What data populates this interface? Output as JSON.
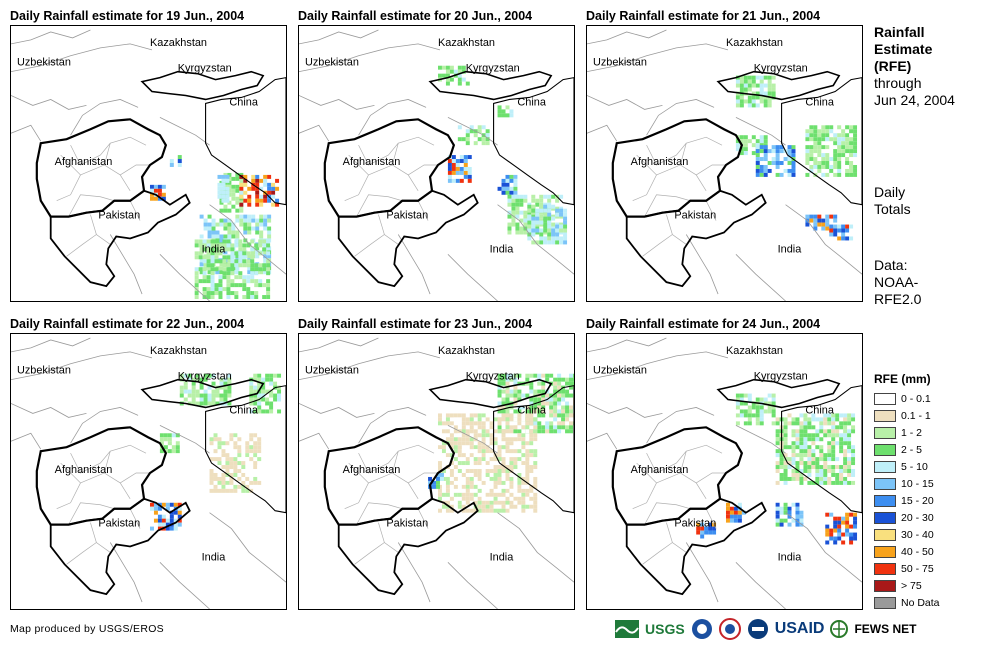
{
  "panels": [
    {
      "title": "Daily Rainfall estimate for 19 Jun., 2004",
      "pattern": "p19"
    },
    {
      "title": "Daily Rainfall estimate for 20 Jun., 2004",
      "pattern": "p20"
    },
    {
      "title": "Daily Rainfall estimate for 21 Jun., 2004",
      "pattern": "p21"
    },
    {
      "title": "Daily Rainfall estimate for 22 Jun., 2004",
      "pattern": "p22"
    },
    {
      "title": "Daily Rainfall estimate for 23 Jun., 2004",
      "pattern": "p23"
    },
    {
      "title": "Daily Rainfall estimate for 24 Jun., 2004",
      "pattern": "p24"
    }
  ],
  "country_labels": {
    "kazakhstan": "Kazakhstan",
    "uzbekistan": "Uzbekistan",
    "kyrgyzstan": "Kyrgyzstan",
    "china": "China",
    "afghanistan": "Afghanistan",
    "pakistan": "Pakistan",
    "india": "India"
  },
  "side": {
    "title_line1": "Rainfall",
    "title_line2": "Estimate",
    "title_line3": "(RFE)",
    "through": "through",
    "date": "Jun 24, 2004",
    "daily1": "Daily",
    "daily2": "Totals",
    "data1": "Data:",
    "data2": "NOAA-",
    "data3": "RFE2.0"
  },
  "legend": {
    "title": "RFE (mm)",
    "items": [
      {
        "label": "0 - 0.1",
        "color": "#ffffff"
      },
      {
        "label": "0.1 - 1",
        "color": "#eedfbf"
      },
      {
        "label": "1 - 2",
        "color": "#b8f0a8"
      },
      {
        "label": "2 - 5",
        "color": "#6ee06e"
      },
      {
        "label": "5 - 10",
        "color": "#bfeff9"
      },
      {
        "label": "10 - 15",
        "color": "#7cc4f8"
      },
      {
        "label": "15 - 20",
        "color": "#3d8ef0"
      },
      {
        "label": "20 - 30",
        "color": "#1a52d6"
      },
      {
        "label": "30 - 40",
        "color": "#f9e07e"
      },
      {
        "label": "40 - 50",
        "color": "#f7a21b"
      },
      {
        "label": "50 - 75",
        "color": "#f0320f"
      },
      {
        "label": "> 75",
        "color": "#a81818"
      },
      {
        "label": "No Data",
        "color": "#9a9a9a"
      }
    ]
  },
  "credit": "Map produced by USGS/EROS",
  "logos": {
    "usgs": "USGS",
    "usaid": "USAID",
    "fews": "FEWS NET"
  }
}
